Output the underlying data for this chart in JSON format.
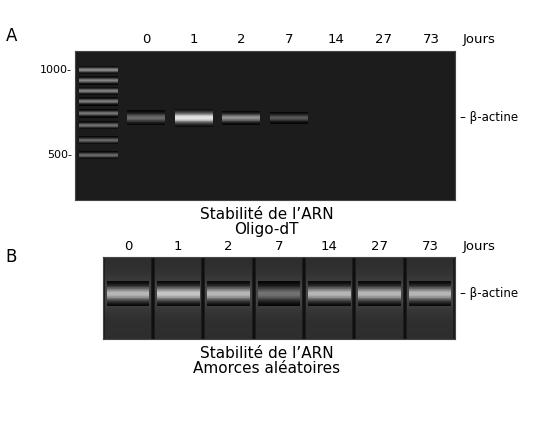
{
  "fig_width": 5.55,
  "fig_height": 4.21,
  "dpi": 100,
  "bg_color": "#ffffff",
  "panel_A": {
    "label": "A",
    "gel_bg": "#1c1c1c",
    "title_line1": "Stabilité de l’ARN",
    "title_line2": "Oligo-dT",
    "jours_label": "Jours",
    "day_labels": [
      "0",
      "1",
      "2",
      "7",
      "14",
      "27",
      "73"
    ],
    "beta_actine_label": "β-actine",
    "marker_label_1000": "1000-",
    "marker_label_500": "500-"
  },
  "panel_B": {
    "label": "B",
    "gel_bg": "#1c1c1c",
    "title_line1": "Stabilité de l’ARN",
    "title_line2": "Amorces aléatoires",
    "jours_label": "Jours",
    "day_labels": [
      "0",
      "1",
      "2",
      "7",
      "14",
      "27",
      "73"
    ],
    "beta_actine_label": "β-actine"
  }
}
